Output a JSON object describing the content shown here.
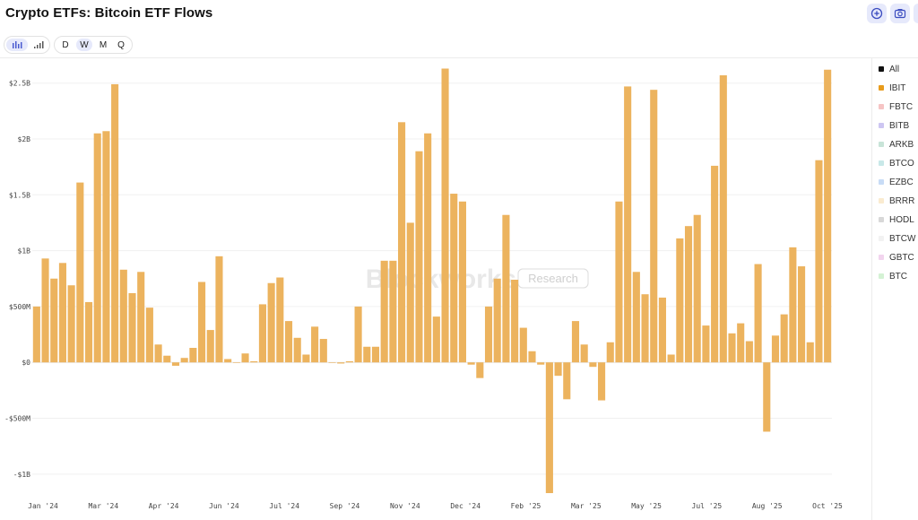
{
  "header": {
    "title": "Crypto ETFs: Bitcoin ETF Flows",
    "buttons": [
      {
        "name": "add-icon"
      },
      {
        "name": "camera-icon"
      }
    ]
  },
  "toolbar": {
    "chart_modes": [
      {
        "icon": "bar-chart-icon",
        "active": true
      },
      {
        "icon": "signal-bars-icon",
        "active": false
      }
    ],
    "intervals": [
      {
        "label": "D",
        "active": false
      },
      {
        "label": "W",
        "active": true
      },
      {
        "label": "M",
        "active": false
      },
      {
        "label": "Q",
        "active": false
      }
    ]
  },
  "watermark": {
    "brand": "Blockworks",
    "tag": "Research"
  },
  "legend": [
    {
      "label": "All",
      "color": "#111111"
    },
    {
      "label": "IBIT",
      "color": "#e89c1c"
    },
    {
      "label": "FBTC",
      "color": "#f6c4c4"
    },
    {
      "label": "BITB",
      "color": "#cdc6f2"
    },
    {
      "label": "ARKB",
      "color": "#c8e4d8"
    },
    {
      "label": "BTCO",
      "color": "#c8e8e8"
    },
    {
      "label": "EZBC",
      "color": "#c8dcf6"
    },
    {
      "label": "BRRR",
      "color": "#faebd0"
    },
    {
      "label": "HODL",
      "color": "#d8d8d8"
    },
    {
      "label": "BTCW",
      "color": "#f2f2f2"
    },
    {
      "label": "GBTC",
      "color": "#f2d4ee"
    },
    {
      "label": "BTC",
      "color": "#d4f2d4"
    }
  ],
  "chart_data": {
    "type": "bar",
    "series": [
      {
        "name": "IBIT",
        "color": "#ecb35e",
        "values": [
          0.5,
          0.93,
          0.75,
          0.89,
          0.69,
          1.61,
          0.54,
          2.05,
          2.07,
          2.49,
          0.83,
          0.62,
          0.81,
          0.49,
          0.16,
          0.06,
          -0.03,
          0.04,
          0.13,
          0.72,
          0.29,
          0.95,
          0.03,
          0.0,
          0.08,
          0.01,
          0.52,
          0.71,
          0.76,
          0.37,
          0.22,
          0.07,
          0.32,
          0.21,
          0.0,
          -0.01,
          0.01,
          0.5,
          0.14,
          0.14,
          0.91,
          0.91,
          2.15,
          1.25,
          1.89,
          2.05,
          0.41,
          2.63,
          1.51,
          1.44,
          -0.02,
          -0.14,
          0.5,
          0.75,
          1.32,
          0.74,
          0.31,
          0.1,
          -0.02,
          -1.17,
          -0.12,
          -0.33,
          0.37,
          0.16,
          -0.04,
          -0.34,
          0.18,
          1.44,
          2.47,
          0.81,
          0.61,
          2.44,
          0.58,
          0.07,
          1.11,
          1.22,
          1.32,
          0.33,
          1.76,
          2.57,
          0.26,
          0.35,
          0.19,
          0.88,
          -0.62,
          0.24,
          0.43,
          1.03,
          0.86,
          0.18,
          1.81,
          2.62
        ]
      }
    ],
    "x_tick_labels": [
      "Jan '24",
      "Mar '24",
      "Apr '24",
      "Jun '24",
      "Jul '24",
      "Sep '24",
      "Nov '24",
      "Dec '24",
      "Feb '25",
      "Mar '25",
      "May '25",
      "Jul '25",
      "Aug '25",
      "Oct '25"
    ],
    "y_ticks": [
      {
        "value": 2.5,
        "label": "$2.5B"
      },
      {
        "value": 2.0,
        "label": "$2B"
      },
      {
        "value": 1.5,
        "label": "$1.5B"
      },
      {
        "value": 1.0,
        "label": "$1B"
      },
      {
        "value": 0.5,
        "label": "$500M"
      },
      {
        "value": 0.0,
        "label": "$0"
      },
      {
        "value": -0.5,
        "label": "-$500M"
      },
      {
        "value": -1.0,
        "label": "-$1B"
      }
    ],
    "ylim": [
      -1.17,
      2.65
    ],
    "unit": "USD billions",
    "grid": true,
    "legend_position": "right"
  }
}
